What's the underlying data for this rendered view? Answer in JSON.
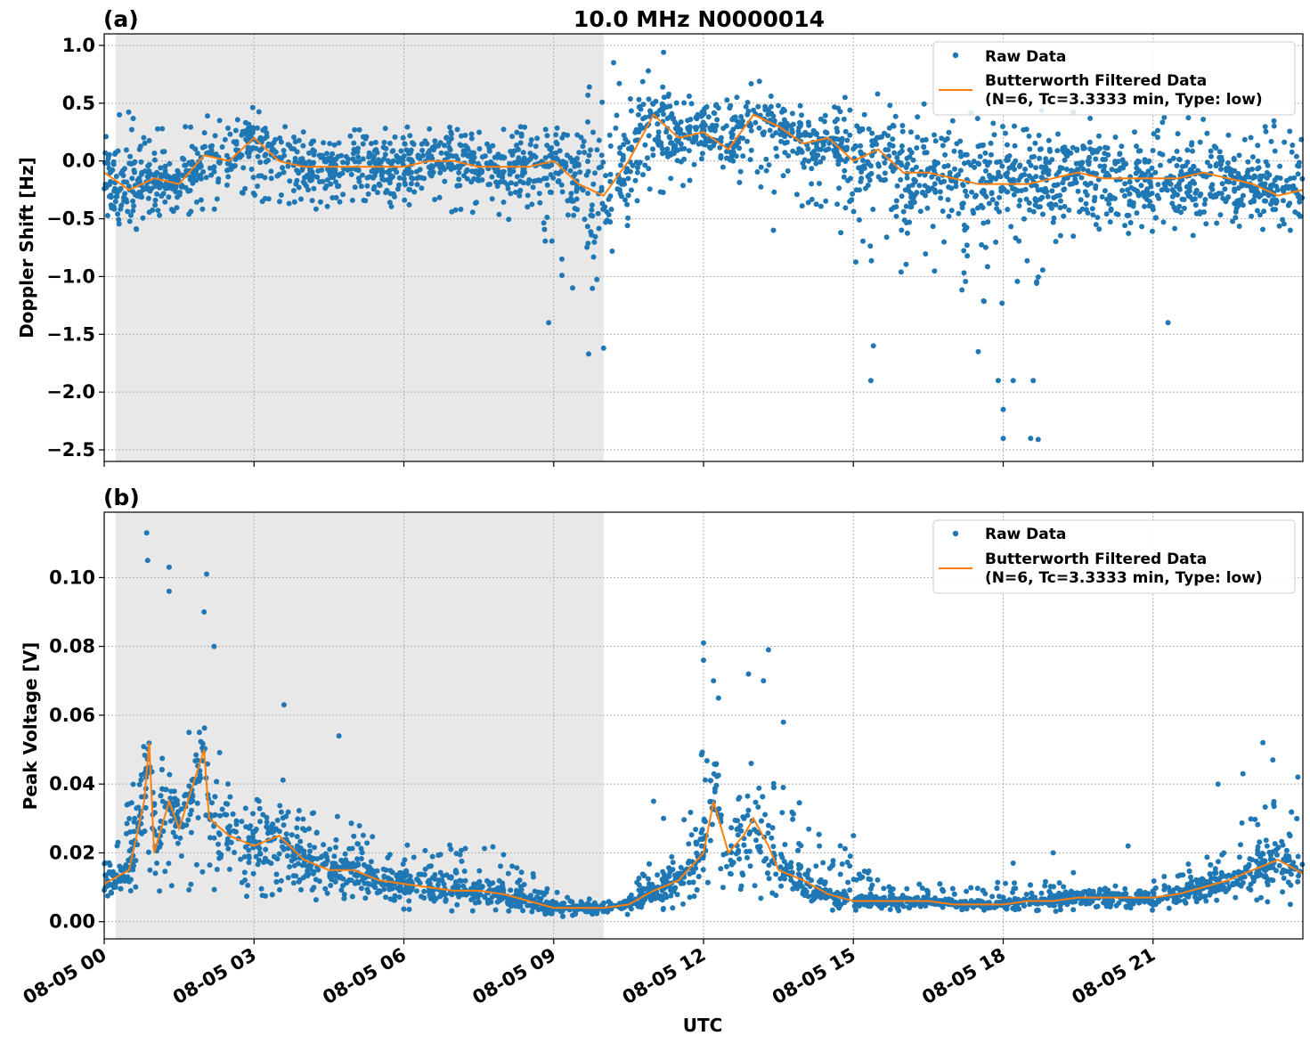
{
  "figure": {
    "title": "10.0 MHz N0000014",
    "xlabel": "UTC"
  },
  "chart_data": [
    {
      "panel_label": "(a)",
      "type": "scatter",
      "ylabel": "Doppler Shift [Hz]",
      "xlim": [
        0,
        24
      ],
      "ylim": [
        -2.6,
        1.1
      ],
      "yticks": [
        1.0,
        0.5,
        0.0,
        -0.5,
        -1.0,
        -1.5,
        -2.0,
        -2.5
      ],
      "ytick_labels": [
        "1.0",
        "0.5",
        "0.0",
        "−0.5",
        "−1.0",
        "−1.5",
        "−2.0",
        "−2.5"
      ],
      "shaded_interval": [
        0.23,
        10.0
      ],
      "grid": true,
      "legend_position": "top-right",
      "legend": [
        "Raw Data",
        "Butterworth Filtered Data",
        "(N=6, Tc=3.3333 min, Type: low)"
      ],
      "series": [
        {
          "name": "Raw Data",
          "kind": "scatter",
          "color": "#1f77b4",
          "x": [
            0.0,
            0.5,
            1.0,
            1.5,
            2.0,
            2.5,
            3.0,
            3.5,
            4.0,
            4.5,
            5.0,
            5.5,
            6.0,
            6.5,
            7.0,
            7.5,
            8.0,
            8.5,
            9.0,
            9.5,
            10.0,
            10.5,
            11.0,
            11.5,
            12.0,
            12.5,
            13.0,
            13.5,
            14.0,
            14.5,
            15.0,
            15.5,
            16.0,
            16.5,
            17.0,
            17.5,
            18.0,
            18.5,
            19.0,
            19.5,
            20.0,
            20.5,
            21.0,
            21.5,
            22.0,
            22.5,
            23.0,
            23.5,
            24.0
          ],
          "upper": [
            0.35,
            0.45,
            0.3,
            0.25,
            0.45,
            0.3,
            0.5,
            0.4,
            0.25,
            0.25,
            0.3,
            0.3,
            0.3,
            0.3,
            0.3,
            0.3,
            0.3,
            0.4,
            0.45,
            0.6,
            0.7,
            0.8,
            0.92,
            0.6,
            0.55,
            0.6,
            0.75,
            0.55,
            0.5,
            0.55,
            0.6,
            0.6,
            0.55,
            0.5,
            0.45,
            0.45,
            0.4,
            0.5,
            0.4,
            0.45,
            0.4,
            0.4,
            0.4,
            0.4,
            0.4,
            0.35,
            0.35,
            0.35,
            0.3
          ],
          "lower": [
            -0.55,
            -0.7,
            -0.5,
            -0.45,
            -0.5,
            -0.4,
            -0.35,
            -0.4,
            -0.4,
            -0.45,
            -0.4,
            -0.4,
            -0.4,
            -0.4,
            -0.45,
            -0.45,
            -0.5,
            -0.6,
            -0.9,
            -1.2,
            -1.2,
            -0.55,
            -0.3,
            -0.25,
            -0.2,
            -0.15,
            -0.25,
            -0.3,
            -0.45,
            -0.6,
            -0.9,
            -0.95,
            -1.0,
            -1.1,
            -1.2,
            -1.3,
            -1.3,
            -1.3,
            -0.7,
            -0.7,
            -0.7,
            -0.65,
            -0.65,
            -0.65,
            -0.65,
            -0.6,
            -0.6,
            -0.6,
            -0.6
          ],
          "outliers": [
            [
              8.9,
              -1.4
            ],
            [
              9.7,
              -1.67
            ],
            [
              10.0,
              -1.62
            ],
            [
              10.2,
              0.85
            ],
            [
              11.2,
              0.94
            ],
            [
              15.35,
              -1.9
            ],
            [
              15.4,
              -1.6
            ],
            [
              17.5,
              -1.65
            ],
            [
              17.9,
              -1.9
            ],
            [
              18.0,
              -2.15
            ],
            [
              18.0,
              -2.4
            ],
            [
              18.2,
              -1.9
            ],
            [
              18.6,
              -1.9
            ],
            [
              18.55,
              -2.4
            ],
            [
              18.7,
              -2.41
            ],
            [
              13.4,
              -0.6
            ],
            [
              21.3,
              -1.4
            ]
          ]
        },
        {
          "name": "Butterworth Filtered Data",
          "kind": "line",
          "color": "#ff7f0e",
          "x": [
            0.0,
            0.5,
            1.0,
            1.5,
            2.0,
            2.5,
            3.0,
            3.5,
            4.0,
            4.5,
            5.0,
            5.5,
            6.0,
            6.5,
            7.0,
            7.5,
            8.0,
            8.5,
            9.0,
            9.5,
            10.0,
            10.5,
            11.0,
            11.5,
            12.0,
            12.5,
            13.0,
            13.5,
            14.0,
            14.5,
            15.0,
            15.5,
            16.0,
            16.5,
            17.0,
            17.5,
            18.0,
            18.5,
            19.0,
            19.5,
            20.0,
            20.5,
            21.0,
            21.5,
            22.0,
            22.5,
            23.0,
            23.5,
            24.0
          ],
          "y": [
            -0.1,
            -0.25,
            -0.15,
            -0.2,
            0.05,
            0.0,
            0.2,
            0.0,
            -0.05,
            -0.05,
            -0.05,
            -0.05,
            -0.05,
            0.0,
            0.0,
            -0.05,
            -0.05,
            -0.05,
            0.0,
            -0.2,
            -0.3,
            0.0,
            0.4,
            0.2,
            0.25,
            0.1,
            0.4,
            0.3,
            0.15,
            0.2,
            0.0,
            0.1,
            -0.1,
            -0.1,
            -0.15,
            -0.2,
            -0.2,
            -0.2,
            -0.15,
            -0.1,
            -0.15,
            -0.15,
            -0.15,
            -0.15,
            -0.1,
            -0.15,
            -0.2,
            -0.3,
            -0.25
          ]
        }
      ]
    },
    {
      "panel_label": "(b)",
      "type": "scatter",
      "ylabel": "Peak Voltage [V]",
      "xlim": [
        0,
        24
      ],
      "ylim": [
        -0.005,
        0.119
      ],
      "yticks": [
        0.0,
        0.02,
        0.04,
        0.06,
        0.08,
        0.1
      ],
      "ytick_labels": [
        "0.00",
        "0.02",
        "0.04",
        "0.06",
        "0.08",
        "0.10"
      ],
      "xticks": [
        0,
        3,
        6,
        9,
        12,
        15,
        18,
        21
      ],
      "xtick_labels": [
        "08-05 00",
        "08-05 03",
        "08-05 06",
        "08-05 09",
        "08-05 12",
        "08-05 15",
        "08-05 18",
        "08-05 21"
      ],
      "shaded_interval": [
        0.23,
        10.0
      ],
      "grid": true,
      "legend_position": "top-right",
      "legend": [
        "Raw Data",
        "Butterworth Filtered Data",
        "(N=6, Tc=3.3333 min, Type: low)"
      ],
      "series": [
        {
          "name": "Raw Data",
          "kind": "scatter",
          "color": "#1f77b4",
          "x": [
            0.0,
            0.5,
            0.8,
            1.0,
            1.3,
            1.5,
            2.0,
            2.5,
            3.0,
            3.5,
            4.0,
            4.5,
            5.0,
            5.5,
            6.0,
            6.5,
            7.0,
            7.5,
            8.0,
            8.5,
            9.0,
            9.5,
            10.0,
            10.5,
            11.0,
            11.5,
            12.0,
            12.3,
            12.5,
            13.0,
            13.5,
            14.0,
            14.5,
            15.0,
            15.5,
            16.0,
            16.5,
            17.0,
            17.5,
            18.0,
            18.5,
            19.0,
            19.5,
            20.0,
            20.5,
            21.0,
            21.5,
            22.0,
            22.5,
            23.0,
            23.5,
            24.0
          ],
          "upper": [
            0.025,
            0.035,
            0.06,
            0.045,
            0.05,
            0.04,
            0.065,
            0.04,
            0.035,
            0.045,
            0.035,
            0.035,
            0.03,
            0.025,
            0.022,
            0.025,
            0.022,
            0.025,
            0.02,
            0.015,
            0.01,
            0.007,
            0.006,
            0.01,
            0.02,
            0.025,
            0.06,
            0.05,
            0.04,
            0.05,
            0.045,
            0.035,
            0.025,
            0.02,
            0.012,
            0.01,
            0.012,
            0.01,
            0.01,
            0.012,
            0.012,
            0.012,
            0.015,
            0.012,
            0.012,
            0.012,
            0.015,
            0.02,
            0.028,
            0.035,
            0.035,
            0.03
          ],
          "lower": [
            0.005,
            0.007,
            0.01,
            0.008,
            0.008,
            0.008,
            0.01,
            0.008,
            0.007,
            0.007,
            0.006,
            0.006,
            0.005,
            0.005,
            0.003,
            0.003,
            0.003,
            0.003,
            0.003,
            0.002,
            0.001,
            0.002,
            0.002,
            0.002,
            0.003,
            0.004,
            0.005,
            0.004,
            0.004,
            0.005,
            0.005,
            0.004,
            0.003,
            0.003,
            0.003,
            0.003,
            0.003,
            0.003,
            0.003,
            0.003,
            0.003,
            0.003,
            0.003,
            0.003,
            0.003,
            0.003,
            0.004,
            0.004,
            0.005,
            0.005,
            0.005,
            0.005
          ],
          "outliers": [
            [
              0.85,
              0.113
            ],
            [
              0.87,
              0.105
            ],
            [
              1.3,
              0.103
            ],
            [
              1.3,
              0.096
            ],
            [
              2.05,
              0.101
            ],
            [
              2.0,
              0.09
            ],
            [
              1.7,
              0.055
            ],
            [
              2.2,
              0.08
            ],
            [
              3.6,
              0.063
            ],
            [
              4.7,
              0.054
            ],
            [
              12.0,
              0.081
            ],
            [
              12.0,
              0.076
            ],
            [
              12.2,
              0.07
            ],
            [
              12.3,
              0.065
            ],
            [
              12.9,
              0.072
            ],
            [
              13.3,
              0.079
            ],
            [
              13.2,
              0.07
            ],
            [
              13.6,
              0.058
            ],
            [
              11.0,
              0.035
            ],
            [
              11.2,
              0.03
            ],
            [
              15.0,
              0.025
            ],
            [
              18.2,
              0.017
            ],
            [
              19.0,
              0.02
            ],
            [
              20.5,
              0.022
            ],
            [
              22.3,
              0.04
            ],
            [
              22.8,
              0.043
            ],
            [
              23.2,
              0.052
            ],
            [
              23.4,
              0.047
            ],
            [
              23.9,
              0.042
            ]
          ]
        },
        {
          "name": "Butterworth Filtered Data",
          "kind": "line",
          "color": "#ff7f0e",
          "x": [
            0.0,
            0.5,
            0.8,
            0.9,
            1.0,
            1.3,
            1.5,
            2.0,
            2.1,
            2.5,
            3.0,
            3.5,
            4.0,
            4.5,
            5.0,
            5.5,
            6.0,
            6.5,
            7.0,
            7.5,
            8.0,
            8.5,
            9.0,
            9.5,
            10.0,
            10.5,
            11.0,
            11.5,
            12.0,
            12.2,
            12.5,
            12.8,
            13.0,
            13.3,
            13.5,
            14.0,
            14.5,
            15.0,
            15.5,
            16.0,
            16.5,
            17.0,
            17.5,
            18.0,
            18.5,
            19.0,
            19.5,
            20.0,
            20.5,
            21.0,
            21.5,
            22.0,
            22.5,
            23.0,
            23.5,
            24.0
          ],
          "y": [
            0.011,
            0.015,
            0.035,
            0.052,
            0.02,
            0.035,
            0.027,
            0.05,
            0.03,
            0.025,
            0.022,
            0.025,
            0.018,
            0.015,
            0.015,
            0.012,
            0.011,
            0.01,
            0.009,
            0.009,
            0.008,
            0.006,
            0.004,
            0.004,
            0.004,
            0.005,
            0.009,
            0.012,
            0.02,
            0.035,
            0.02,
            0.025,
            0.03,
            0.022,
            0.015,
            0.012,
            0.008,
            0.006,
            0.006,
            0.006,
            0.006,
            0.005,
            0.005,
            0.005,
            0.006,
            0.006,
            0.007,
            0.007,
            0.007,
            0.007,
            0.008,
            0.01,
            0.012,
            0.015,
            0.018,
            0.014
          ]
        }
      ]
    }
  ]
}
